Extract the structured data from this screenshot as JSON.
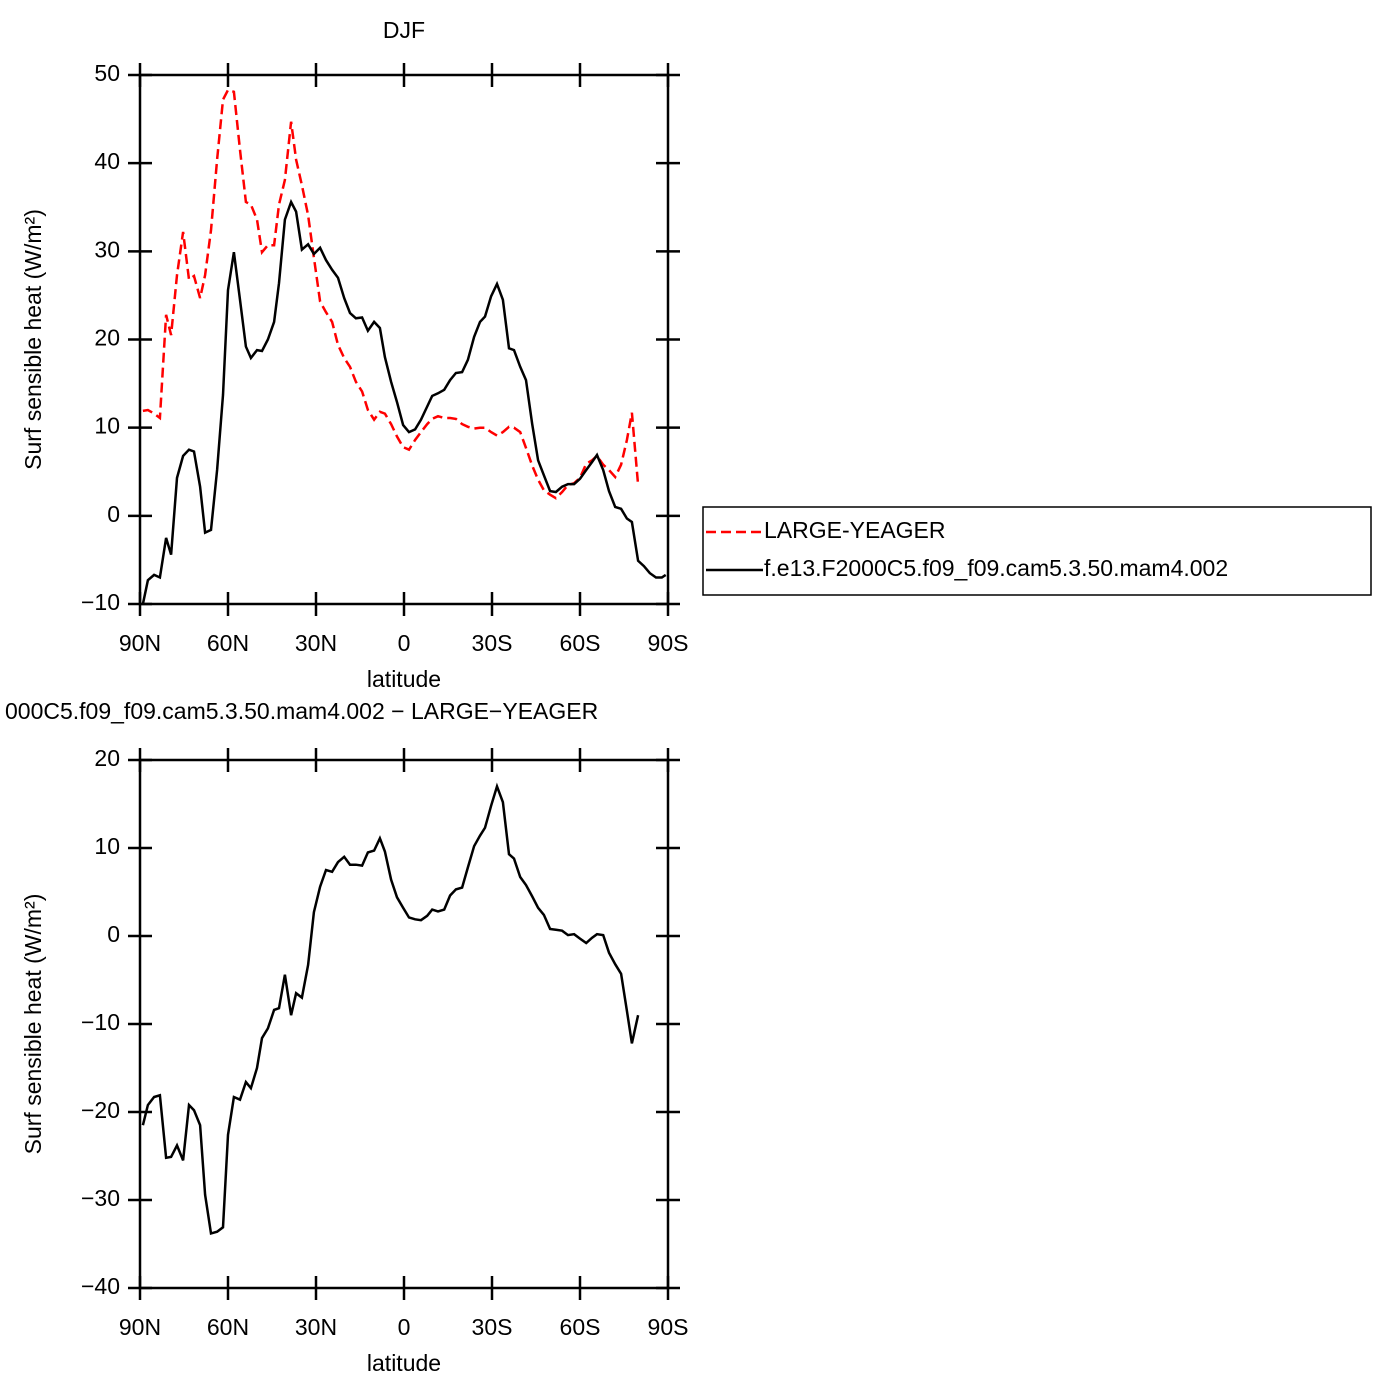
{
  "chart_data": [
    {
      "type": "line",
      "title": "DJF",
      "x_label": "latitude",
      "y_label": "Surf sensible heat (W/m²)",
      "xlim": [
        90,
        -90
      ],
      "ylim": [
        -10,
        50
      ],
      "xticks": [
        {
          "value": 90,
          "label": "90N"
        },
        {
          "value": 60,
          "label": "60N"
        },
        {
          "value": 30,
          "label": "30N"
        },
        0,
        {
          "value": -30,
          "label": "30S"
        },
        {
          "value": -60,
          "label": "60S"
        },
        {
          "value": -90,
          "label": "90S"
        }
      ],
      "yticks": [
        {
          "value": -10,
          "label": "−10"
        },
        0,
        10,
        20,
        30,
        40,
        50
      ],
      "legend": "right",
      "x": [
        89,
        87.3,
        85.2,
        83.2,
        81.1,
        79.4,
        77.4,
        75.3,
        73.3,
        71.6,
        69.5,
        67.8,
        65.8,
        63.7,
        61.7,
        60,
        58,
        55.9,
        53.9,
        52.2,
        50.1,
        48.4,
        46.4,
        44.3,
        42.6,
        40.6,
        38.5,
        36.8,
        34.8,
        32.7,
        30.7,
        28.6,
        26.6,
        24.5,
        22.5,
        20.4,
        18.4,
        16.4,
        14.3,
        12.3,
        10.2,
        8.2,
        6.5,
        4.4,
        2.4,
        0.3,
        -1.7,
        -3.8,
        -5.8,
        -7.9,
        -9.6,
        -11.6,
        -13.7,
        -15.7,
        -17.7,
        -19.8,
        -21.8,
        -23.9,
        -25.9,
        -27.6,
        -29.7,
        -31.7,
        -33.7,
        -35.8,
        -37.5,
        -39.6,
        -41.6,
        -43.7,
        -45.7,
        -47.7,
        -49.8,
        -51.8,
        -53.9,
        -55.9,
        -58,
        -60,
        -62.1,
        -64.1,
        -65.8,
        -67.9,
        -69.9,
        -72,
        -74,
        -76,
        -77.7,
        -79.8,
        -81.8,
        -83.8,
        -85.9,
        -87.9,
        -89.2
      ],
      "series": [
        {
          "name": "LARGE-YEAGER",
          "color": "#ff0000",
          "linestyle": "dashed",
          "values": [
            11.9,
            12.0,
            11.6,
            11.1,
            22.8,
            20.5,
            27.3,
            32.2,
            26.8,
            27.2,
            24.7,
            27.3,
            32.4,
            40.4,
            47.2,
            48.3,
            48.1,
            41.5,
            35.6,
            35.3,
            33.6,
            29.9,
            30.7,
            30.7,
            35.3,
            38.1,
            44.7,
            40.4,
            37.5,
            34.1,
            29.3,
            24.3,
            23.1,
            22.0,
            19.4,
            17.9,
            16.9,
            15.2,
            14.1,
            12.0,
            10.9,
            11.8,
            11.6,
            10.4,
            9.0,
            7.8,
            7.5,
            8.6,
            9.5,
            10.4,
            11.0,
            11.3,
            11.1,
            11.1,
            11.0,
            10.4,
            10.1,
            9.9,
            10.0,
            10.0,
            9.5,
            9.1,
            9.5,
            10.1,
            10.0,
            9.5,
            7.7,
            5.7,
            4.1,
            2.9,
            2.4,
            2.0,
            2.7,
            3.5,
            3.7,
            4.3,
            5.9,
            6.3,
            6.8,
            5.8,
            5.2,
            4.4,
            5.8,
            8.6,
            11.7,
            3.5,
            null,
            null,
            null,
            null,
            null
          ]
        },
        {
          "name": "f.e13.F2000C5.f09_f09.cam5.3.50.mam4.002",
          "color": "#000000",
          "linestyle": "solid",
          "values": [
            -10,
            -7.3,
            -6.7,
            -7.0,
            -2.5,
            -4.4,
            4.3,
            6.8,
            7.5,
            7.3,
            3.3,
            -1.9,
            -1.6,
            5.2,
            13.7,
            25.6,
            29.9,
            24.5,
            19.2,
            17.9,
            18.8,
            18.7,
            20.0,
            22.0,
            26.4,
            33.6,
            35.6,
            34.5,
            30.2,
            30.8,
            29.7,
            30.4,
            29.0,
            27.9,
            27.0,
            24.7,
            23.0,
            22.4,
            22.5,
            21.0,
            22.0,
            21.3,
            18.0,
            15.2,
            12.9,
            10.3,
            9.5,
            9.8,
            10.9,
            12.4,
            13.6,
            13.9,
            14.3,
            15.4,
            16.2,
            16.3,
            17.7,
            20.3,
            22.0,
            22.6,
            24.9,
            26.3,
            24.5,
            19.0,
            18.8,
            16.9,
            15.4,
            10.4,
            6.3,
            4.6,
            2.8,
            2.7,
            3.3,
            3.6,
            3.6,
            4.2,
            5.2,
            6.1,
            6.9,
            5.2,
            2.8,
            1.0,
            0.8,
            -0.3,
            -0.7,
            -5.1,
            -5.7,
            -6.5,
            -7.0,
            -7.0,
            -6.7
          ]
        }
      ]
    },
    {
      "type": "line",
      "title": "000C5.f09_f09.cam5.3.50.mam4.002 − LARGE−YEAGER",
      "x_label": "latitude",
      "y_label": "Surf sensible heat (W/m²)",
      "xlim": [
        90,
        -90
      ],
      "ylim": [
        -40,
        20
      ],
      "xticks": [
        {
          "value": 90,
          "label": "90N"
        },
        {
          "value": 60,
          "label": "60N"
        },
        {
          "value": 30,
          "label": "30N"
        },
        0,
        {
          "value": -30,
          "label": "30S"
        },
        {
          "value": -60,
          "label": "60S"
        },
        {
          "value": -90,
          "label": "90S"
        }
      ],
      "yticks": [
        {
          "value": -40,
          "label": "−40"
        },
        {
          "value": -30,
          "label": "−30"
        },
        {
          "value": -20,
          "label": "−20"
        },
        {
          "value": -10,
          "label": "−10"
        },
        0,
        10,
        20
      ],
      "x": [
        89,
        87.3,
        85.2,
        83.2,
        81.1,
        79.4,
        77.4,
        75.3,
        73.3,
        71.6,
        69.5,
        67.8,
        65.8,
        63.7,
        61.7,
        60,
        58,
        55.9,
        53.9,
        52.2,
        50.1,
        48.4,
        46.4,
        44.3,
        42.6,
        40.6,
        38.5,
        36.8,
        34.8,
        32.7,
        30.7,
        28.6,
        26.6,
        24.5,
        22.5,
        20.4,
        18.4,
        16.4,
        14.3,
        12.3,
        10.2,
        8.2,
        6.5,
        4.4,
        2.4,
        0.3,
        -1.7,
        -3.8,
        -5.8,
        -7.9,
        -9.6,
        -11.6,
        -13.7,
        -15.7,
        -17.7,
        -19.8,
        -21.8,
        -23.9,
        -25.9,
        -27.6,
        -29.7,
        -31.7,
        -33.7,
        -35.8,
        -37.5,
        -39.6,
        -41.6,
        -43.7,
        -45.7,
        -47.7,
        -49.8,
        -51.8,
        -53.9,
        -55.9,
        -58,
        -60,
        -62.1,
        -64.1,
        -65.8,
        -67.9,
        -69.9,
        -72,
        -74,
        -76,
        -77.7,
        -79.8,
        -81.8,
        -83.8,
        -85.9,
        -87.9,
        -89.2
      ],
      "series": [
        {
          "color": "#000000",
          "linestyle": "solid",
          "values": [
            -21.5,
            -19.2,
            -18.3,
            -18.1,
            -25.2,
            -25.1,
            -23.8,
            -25.5,
            -19.2,
            -19.8,
            -21.5,
            -29.4,
            -33.8,
            -33.6,
            -33.1,
            -22.6,
            -18.3,
            -18.6,
            -16.6,
            -17.3,
            -15.0,
            -11.6,
            -10.5,
            -8.4,
            -8.2,
            -4.4,
            -9.0,
            -6.5,
            -7.0,
            -3.3,
            2.7,
            5.6,
            7.5,
            7.3,
            8.4,
            9.0,
            8.1,
            8.1,
            8.0,
            9.5,
            9.7,
            11.1,
            9.6,
            6.4,
            4.4,
            3.2,
            2.1,
            1.9,
            1.8,
            2.3,
            3.0,
            2.8,
            3.0,
            4.6,
            5.3,
            5.5,
            7.8,
            10.2,
            11.4,
            12.3,
            14.8,
            17.0,
            15.2,
            9.3,
            8.8,
            6.7,
            5.8,
            4.5,
            3.2,
            2.4,
            0.8,
            0.7,
            0.6,
            0.1,
            0.2,
            -0.3,
            -0.8,
            -0.2,
            0.2,
            0.1,
            -1.9,
            -3.2,
            -4.3,
            -8.5,
            -12.2,
            -9.0,
            null,
            null,
            null,
            null,
            null
          ]
        }
      ]
    }
  ]
}
